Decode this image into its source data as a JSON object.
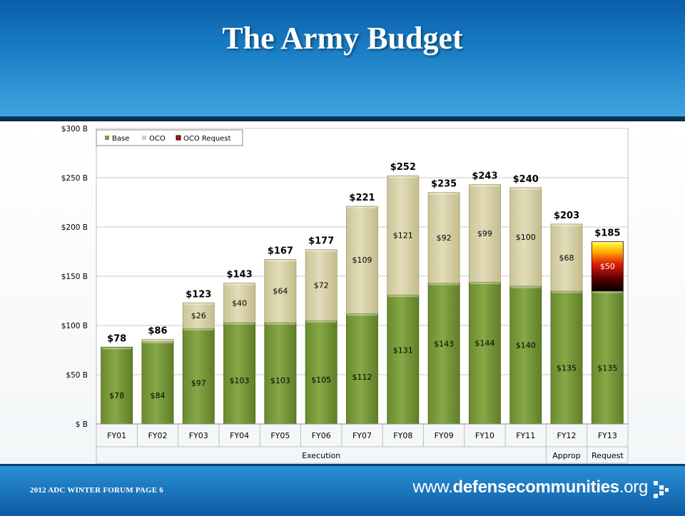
{
  "header": {
    "title": "The Army Budget"
  },
  "footer": {
    "left_text": "2012 ADC WINTER FORUM   PAGE 6",
    "logo_prefix": "www.",
    "logo_bold": "defensecommunities",
    "logo_suffix": ".org"
  },
  "chart_data": {
    "type": "bar",
    "stacked": true,
    "categories": [
      "FY01",
      "FY02",
      "FY03",
      "FY04",
      "FY05",
      "FY06",
      "FY07",
      "FY08",
      "FY09",
      "FY10",
      "FY11",
      "FY12",
      "FY13"
    ],
    "series": [
      {
        "name": "Base",
        "values": [
          78,
          84,
          97,
          103,
          103,
          105,
          112,
          131,
          143,
          144,
          140,
          135,
          135
        ],
        "labels": [
          "$78",
          "$84",
          "$97",
          "$103",
          "$103",
          "$105",
          "$112",
          "$131",
          "$143",
          "$144",
          "$140",
          "$135",
          "$135"
        ],
        "color": "#7a9a3c"
      },
      {
        "name": "OCO",
        "values": [
          0,
          2,
          26,
          40,
          64,
          72,
          109,
          121,
          92,
          99,
          100,
          68,
          0
        ],
        "labels": [
          "",
          "",
          "$26",
          "$40",
          "$64",
          "$72",
          "$109",
          "$121",
          "$92",
          "$99",
          "$100",
          "$68",
          ""
        ],
        "color": "#d6cfa6"
      },
      {
        "name": "OCO Request",
        "values": [
          0,
          0,
          0,
          0,
          0,
          0,
          0,
          0,
          0,
          0,
          0,
          0,
          50
        ],
        "labels": [
          "",
          "",
          "",
          "",
          "",
          "",
          "",
          "",
          "",
          "",
          "",
          "",
          "$50"
        ],
        "color": "#c8180c"
      }
    ],
    "totals": [
      "$78",
      "$86",
      "$123",
      "$143",
      "$167",
      "$177",
      "$221",
      "$252",
      "$235",
      "$243",
      "$240",
      "$203",
      "$185"
    ],
    "y_ticks": [
      "$ B",
      "$50 B",
      "$100 B",
      "$150 B",
      "$200 B",
      "$250 B",
      "$300 B"
    ],
    "ylim": [
      0,
      300
    ],
    "groups": [
      {
        "label": "Execution",
        "from": 0,
        "to": 10
      },
      {
        "label": "Approp",
        "from": 11,
        "to": 11
      },
      {
        "label": "Request",
        "from": 12,
        "to": 12
      }
    ],
    "legend": {
      "position": "top-left"
    },
    "grid": true
  }
}
